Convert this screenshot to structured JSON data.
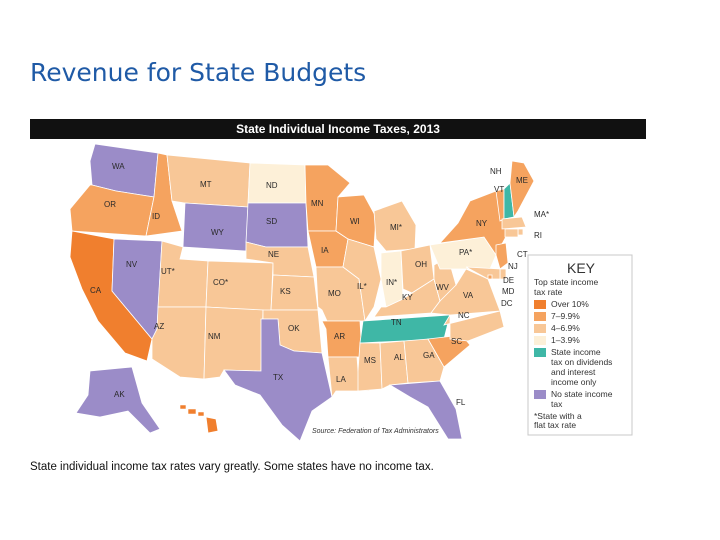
{
  "slide": {
    "title": "Revenue for State Budgets",
    "caption": "State individual income tax rates vary greatly. Some states have no income tax."
  },
  "map": {
    "header": "State Individual Income Taxes, 2013",
    "source": "Source: Federation of Tax Administrators",
    "key": {
      "title": "KEY",
      "subtitle_lines": [
        "Top state income",
        "tax rate"
      ],
      "items": [
        {
          "id": "over10",
          "lines": [
            "Over 10%"
          ],
          "color": "#f07f2e"
        },
        {
          "id": "r7",
          "lines": [
            "7–9.9%"
          ],
          "color": "#f5a35f"
        },
        {
          "id": "r4",
          "lines": [
            "4–6.9%"
          ],
          "color": "#f8c797"
        },
        {
          "id": "r1",
          "lines": [
            "1–3.9%"
          ],
          "color": "#fdf0d8"
        },
        {
          "id": "div",
          "lines": [
            "State income",
            "tax on dividends",
            "and interest",
            "income only"
          ],
          "color": "#3fb7a6"
        },
        {
          "id": "none",
          "lines": [
            "No state income",
            "tax"
          ],
          "color": "#9b8cc8"
        }
      ],
      "note_lines": [
        "*State with a",
        "flat tax rate"
      ]
    },
    "colors": {
      "over10": "#f07f2e",
      "r7": "#f5a35f",
      "r4": "#f8c797",
      "r1": "#fdf0d8",
      "div": "#3fb7a6",
      "none": "#9b8cc8"
    },
    "states": {
      "WA": {
        "label": "WA",
        "cat": "none"
      },
      "OR": {
        "label": "OR",
        "cat": "r7"
      },
      "CA": {
        "label": "CA",
        "cat": "over10"
      },
      "ID": {
        "label": "ID",
        "cat": "r7"
      },
      "NV": {
        "label": "NV",
        "cat": "none"
      },
      "MT": {
        "label": "MT",
        "cat": "r4"
      },
      "WY": {
        "label": "WY",
        "cat": "none"
      },
      "UT": {
        "label": "UT*",
        "cat": "r4"
      },
      "AZ": {
        "label": "AZ",
        "cat": "r4"
      },
      "CO": {
        "label": "CO*",
        "cat": "r4"
      },
      "NM": {
        "label": "NM",
        "cat": "r4"
      },
      "ND": {
        "label": "ND",
        "cat": "r1"
      },
      "SD": {
        "label": "SD",
        "cat": "none"
      },
      "NE": {
        "label": "NE",
        "cat": "r4"
      },
      "KS": {
        "label": "KS",
        "cat": "r4"
      },
      "OK": {
        "label": "OK",
        "cat": "r4"
      },
      "TX": {
        "label": "TX",
        "cat": "none"
      },
      "MN": {
        "label": "MN",
        "cat": "r7"
      },
      "IA": {
        "label": "IA",
        "cat": "r7"
      },
      "MO": {
        "label": "MO",
        "cat": "r4"
      },
      "AR": {
        "label": "AR",
        "cat": "r7"
      },
      "LA": {
        "label": "LA",
        "cat": "r4"
      },
      "WI": {
        "label": "WI",
        "cat": "r7"
      },
      "IL": {
        "label": "IL*",
        "cat": "r4"
      },
      "MI": {
        "label": "MI*",
        "cat": "r4"
      },
      "IN": {
        "label": "IN*",
        "cat": "r1"
      },
      "OH": {
        "label": "OH",
        "cat": "r4"
      },
      "KY": {
        "label": "KY",
        "cat": "r4"
      },
      "TN": {
        "label": "TN",
        "cat": "div"
      },
      "MS": {
        "label": "MS",
        "cat": "r4"
      },
      "AL": {
        "label": "AL",
        "cat": "r4"
      },
      "GA": {
        "label": "GA",
        "cat": "r4"
      },
      "FL": {
        "label": "FL",
        "cat": "none"
      },
      "SC": {
        "label": "SC",
        "cat": "r7"
      },
      "NC": {
        "label": "NC",
        "cat": "r4"
      },
      "VA": {
        "label": "VA",
        "cat": "r4"
      },
      "WV": {
        "label": "WV",
        "cat": "r4"
      },
      "PA": {
        "label": "PA*",
        "cat": "r1"
      },
      "NY": {
        "label": "NY",
        "cat": "r7"
      },
      "VT": {
        "label": "VT",
        "cat": "r7"
      },
      "NH": {
        "label": "NH",
        "cat": "div"
      },
      "ME": {
        "label": "ME",
        "cat": "r7"
      },
      "MA": {
        "label": "MA*",
        "cat": "r4"
      },
      "RI": {
        "label": "RI",
        "cat": "r4"
      },
      "CT": {
        "label": "CT",
        "cat": "r4"
      },
      "NJ": {
        "label": "NJ",
        "cat": "r7"
      },
      "DE": {
        "label": "DE",
        "cat": "r4"
      },
      "MD": {
        "label": "MD",
        "cat": "r4"
      },
      "DC": {
        "label": "DC",
        "cat": "r7"
      },
      "AK": {
        "label": "AK",
        "cat": "none"
      },
      "HI": {
        "label": "HI",
        "cat": "over10"
      }
    }
  }
}
